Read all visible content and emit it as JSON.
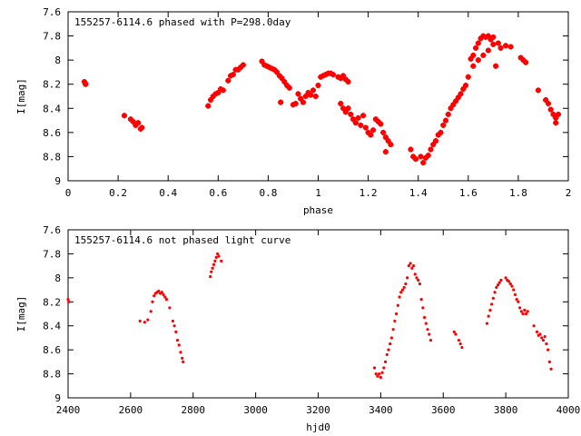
{
  "chart_data": [
    {
      "type": "scatter",
      "title": "155257-6114.6 phased with P=298.0day",
      "xlabel": "phase",
      "ylabel": "I[mag]",
      "xlim": [
        0,
        2
      ],
      "ylim": [
        9,
        7.6
      ],
      "y_reversed": true,
      "xticks": [
        0,
        0.2,
        0.4,
        0.6,
        0.8,
        1,
        1.2,
        1.4,
        1.6,
        1.8,
        2
      ],
      "xtick_labels": [
        "0",
        "0.2",
        "0.4",
        "0.6",
        "0.8",
        "1",
        "1.2",
        "1.4",
        "1.6",
        "1.8",
        "2"
      ],
      "yticks": [
        7.6,
        7.8,
        8,
        8.2,
        8.4,
        8.6,
        8.8,
        9
      ],
      "ytick_labels": [
        "7.6",
        "7.8",
        "8",
        "8.2",
        "8.4",
        "8.6",
        "8.8",
        "9"
      ],
      "grid": false,
      "marker_color": "#ff0000",
      "points": [
        [
          0.065,
          8.18
        ],
        [
          0.07,
          8.2
        ],
        [
          0.068,
          8.19
        ],
        [
          0.225,
          8.46
        ],
        [
          0.25,
          8.49
        ],
        [
          0.26,
          8.51
        ],
        [
          0.27,
          8.54
        ],
        [
          0.28,
          8.52
        ],
        [
          0.29,
          8.57
        ],
        [
          0.295,
          8.56
        ],
        [
          0.56,
          8.38
        ],
        [
          0.57,
          8.33
        ],
        [
          0.58,
          8.3
        ],
        [
          0.59,
          8.28
        ],
        [
          0.6,
          8.27
        ],
        [
          0.61,
          8.24
        ],
        [
          0.62,
          8.25
        ],
        [
          0.64,
          8.17
        ],
        [
          0.65,
          8.13
        ],
        [
          0.66,
          8.12
        ],
        [
          0.67,
          8.08
        ],
        [
          0.68,
          8.08
        ],
        [
          0.69,
          8.06
        ],
        [
          0.7,
          8.04
        ],
        [
          0.775,
          8.01
        ],
        [
          0.785,
          8.04
        ],
        [
          0.795,
          8.05
        ],
        [
          0.805,
          8.06
        ],
        [
          0.815,
          8.07
        ],
        [
          0.825,
          8.08
        ],
        [
          0.835,
          8.1
        ],
        [
          0.845,
          8.13
        ],
        [
          0.855,
          8.15
        ],
        [
          0.865,
          8.18
        ],
        [
          0.875,
          8.21
        ],
        [
          0.885,
          8.23
        ],
        [
          0.85,
          8.35
        ],
        [
          0.9,
          8.37
        ],
        [
          0.91,
          8.36
        ],
        [
          0.92,
          8.28
        ],
        [
          0.93,
          8.32
        ],
        [
          0.94,
          8.35
        ],
        [
          0.95,
          8.3
        ],
        [
          0.96,
          8.27
        ],
        [
          0.97,
          8.29
        ],
        [
          0.98,
          8.25
        ],
        [
          0.99,
          8.3
        ],
        [
          1.0,
          8.21
        ],
        [
          1.01,
          8.14
        ],
        [
          1.02,
          8.13
        ],
        [
          1.03,
          8.12
        ],
        [
          1.04,
          8.11
        ],
        [
          1.05,
          8.11
        ],
        [
          1.06,
          8.12
        ],
        [
          1.08,
          8.14
        ],
        [
          1.09,
          8.15
        ],
        [
          1.1,
          8.13
        ],
        [
          1.11,
          8.16
        ],
        [
          1.12,
          8.18
        ],
        [
          1.09,
          8.36
        ],
        [
          1.1,
          8.4
        ],
        [
          1.11,
          8.43
        ],
        [
          1.12,
          8.4
        ],
        [
          1.13,
          8.45
        ],
        [
          1.14,
          8.49
        ],
        [
          1.15,
          8.52
        ],
        [
          1.16,
          8.48
        ],
        [
          1.17,
          8.54
        ],
        [
          1.18,
          8.46
        ],
        [
          1.19,
          8.56
        ],
        [
          1.2,
          8.6
        ],
        [
          1.21,
          8.62
        ],
        [
          1.22,
          8.58
        ],
        [
          1.23,
          8.49
        ],
        [
          1.24,
          8.51
        ],
        [
          1.25,
          8.53
        ],
        [
          1.26,
          8.6
        ],
        [
          1.27,
          8.64
        ],
        [
          1.28,
          8.67
        ],
        [
          1.29,
          8.7
        ],
        [
          1.27,
          8.76
        ],
        [
          1.37,
          8.74
        ],
        [
          1.38,
          8.8
        ],
        [
          1.39,
          8.82
        ],
        [
          1.41,
          8.8
        ],
        [
          1.42,
          8.85
        ],
        [
          1.43,
          8.81
        ],
        [
          1.44,
          8.79
        ],
        [
          1.45,
          8.74
        ],
        [
          1.46,
          8.7
        ],
        [
          1.47,
          8.67
        ],
        [
          1.48,
          8.62
        ],
        [
          1.49,
          8.6
        ],
        [
          1.5,
          8.54
        ],
        [
          1.51,
          8.5
        ],
        [
          1.52,
          8.45
        ],
        [
          1.53,
          8.4
        ],
        [
          1.54,
          8.37
        ],
        [
          1.55,
          8.34
        ],
        [
          1.56,
          8.31
        ],
        [
          1.57,
          8.28
        ],
        [
          1.58,
          8.24
        ],
        [
          1.59,
          8.21
        ],
        [
          1.6,
          8.14
        ],
        [
          1.61,
          7.99
        ],
        [
          1.62,
          7.96
        ],
        [
          1.63,
          7.9
        ],
        [
          1.64,
          7.86
        ],
        [
          1.65,
          7.82
        ],
        [
          1.66,
          7.8
        ],
        [
          1.67,
          7.81
        ],
        [
          1.68,
          7.8
        ],
        [
          1.69,
          7.83
        ],
        [
          1.7,
          7.81
        ],
        [
          1.62,
          8.05
        ],
        [
          1.64,
          8.0
        ],
        [
          1.66,
          7.96
        ],
        [
          1.68,
          7.92
        ],
        [
          1.7,
          7.87
        ],
        [
          1.72,
          7.86
        ],
        [
          1.73,
          7.9
        ],
        [
          1.75,
          7.88
        ],
        [
          1.71,
          8.05
        ],
        [
          1.77,
          7.89
        ],
        [
          1.81,
          7.98
        ],
        [
          1.82,
          8.0
        ],
        [
          1.83,
          8.02
        ],
        [
          1.88,
          8.25
        ],
        [
          1.91,
          8.33
        ],
        [
          1.92,
          8.36
        ],
        [
          1.93,
          8.41
        ],
        [
          1.94,
          8.45
        ],
        [
          1.95,
          8.48
        ],
        [
          1.95,
          8.52
        ],
        [
          1.96,
          8.45
        ]
      ]
    },
    {
      "type": "scatter",
      "title": "155257-6114.6 not phased light curve",
      "xlabel": "hjd0",
      "ylabel": "I[mag]",
      "xlim": [
        2400,
        4000
      ],
      "ylim": [
        9,
        7.6
      ],
      "y_reversed": true,
      "xticks": [
        2400,
        2600,
        2800,
        3000,
        3200,
        3400,
        3600,
        3800,
        4000
      ],
      "xtick_labels": [
        "2400",
        "2600",
        "2800",
        "3000",
        "3200",
        "3400",
        "3600",
        "3800",
        "4000"
      ],
      "yticks": [
        7.6,
        7.8,
        8,
        8.2,
        8.4,
        8.6,
        8.8,
        9
      ],
      "ytick_labels": [
        "7.6",
        "7.8",
        "8",
        "8.2",
        "8.4",
        "8.6",
        "8.8",
        "9"
      ],
      "grid": false,
      "marker_color": "#ff0000",
      "points": [
        [
          2400,
          8.18
        ],
        [
          2402,
          8.2
        ],
        [
          2630,
          8.36
        ],
        [
          2645,
          8.37
        ],
        [
          2655,
          8.35
        ],
        [
          2665,
          8.28
        ],
        [
          2670,
          8.2
        ],
        [
          2675,
          8.15
        ],
        [
          2680,
          8.13
        ],
        [
          2685,
          8.12
        ],
        [
          2690,
          8.11
        ],
        [
          2695,
          8.13
        ],
        [
          2700,
          8.12
        ],
        [
          2705,
          8.14
        ],
        [
          2710,
          8.16
        ],
        [
          2715,
          8.18
        ],
        [
          2725,
          8.25
        ],
        [
          2735,
          8.36
        ],
        [
          2740,
          8.4
        ],
        [
          2745,
          8.45
        ],
        [
          2750,
          8.52
        ],
        [
          2755,
          8.56
        ],
        [
          2760,
          8.62
        ],
        [
          2765,
          8.67
        ],
        [
          2768,
          8.7
        ],
        [
          2855,
          7.99
        ],
        [
          2858,
          7.95
        ],
        [
          2862,
          7.92
        ],
        [
          2866,
          7.89
        ],
        [
          2870,
          7.86
        ],
        [
          2874,
          7.83
        ],
        [
          2878,
          7.8
        ],
        [
          2882,
          7.82
        ],
        [
          2890,
          7.86
        ],
        [
          3380,
          8.75
        ],
        [
          3385,
          8.8
        ],
        [
          3390,
          8.82
        ],
        [
          3395,
          8.8
        ],
        [
          3400,
          8.83
        ],
        [
          3405,
          8.79
        ],
        [
          3410,
          8.75
        ],
        [
          3415,
          8.7
        ],
        [
          3420,
          8.64
        ],
        [
          3425,
          8.6
        ],
        [
          3430,
          8.55
        ],
        [
          3435,
          8.5
        ],
        [
          3440,
          8.43
        ],
        [
          3445,
          8.36
        ],
        [
          3450,
          8.3
        ],
        [
          3455,
          8.23
        ],
        [
          3460,
          8.16
        ],
        [
          3465,
          8.12
        ],
        [
          3470,
          8.1
        ],
        [
          3475,
          8.08
        ],
        [
          3480,
          8.05
        ],
        [
          3485,
          8.0
        ],
        [
          3490,
          7.9
        ],
        [
          3495,
          7.88
        ],
        [
          3500,
          7.92
        ],
        [
          3505,
          7.9
        ],
        [
          3510,
          7.97
        ],
        [
          3515,
          8.0
        ],
        [
          3520,
          8.02
        ],
        [
          3525,
          8.05
        ],
        [
          3530,
          8.18
        ],
        [
          3535,
          8.25
        ],
        [
          3540,
          8.33
        ],
        [
          3545,
          8.38
        ],
        [
          3550,
          8.43
        ],
        [
          3555,
          8.47
        ],
        [
          3560,
          8.52
        ],
        [
          3635,
          8.45
        ],
        [
          3640,
          8.47
        ],
        [
          3650,
          8.52
        ],
        [
          3655,
          8.55
        ],
        [
          3660,
          8.58
        ],
        [
          3740,
          8.38
        ],
        [
          3745,
          8.32
        ],
        [
          3750,
          8.27
        ],
        [
          3755,
          8.22
        ],
        [
          3760,
          8.17
        ],
        [
          3765,
          8.12
        ],
        [
          3770,
          8.08
        ],
        [
          3775,
          8.06
        ],
        [
          3780,
          8.04
        ],
        [
          3785,
          8.02
        ],
        [
          3800,
          8.0
        ],
        [
          3805,
          8.02
        ],
        [
          3810,
          8.03
        ],
        [
          3815,
          8.05
        ],
        [
          3820,
          8.07
        ],
        [
          3825,
          8.1
        ],
        [
          3830,
          8.14
        ],
        [
          3835,
          8.18
        ],
        [
          3840,
          8.2
        ],
        [
          3845,
          8.25
        ],
        [
          3850,
          8.28
        ],
        [
          3855,
          8.3
        ],
        [
          3860,
          8.27
        ],
        [
          3865,
          8.3
        ],
        [
          3870,
          8.28
        ],
        [
          3890,
          8.4
        ],
        [
          3900,
          8.45
        ],
        [
          3905,
          8.48
        ],
        [
          3910,
          8.47
        ],
        [
          3915,
          8.5
        ],
        [
          3920,
          8.52
        ],
        [
          3925,
          8.49
        ],
        [
          3930,
          8.55
        ],
        [
          3935,
          8.6
        ],
        [
          3940,
          8.7
        ],
        [
          3945,
          8.76
        ]
      ]
    }
  ]
}
